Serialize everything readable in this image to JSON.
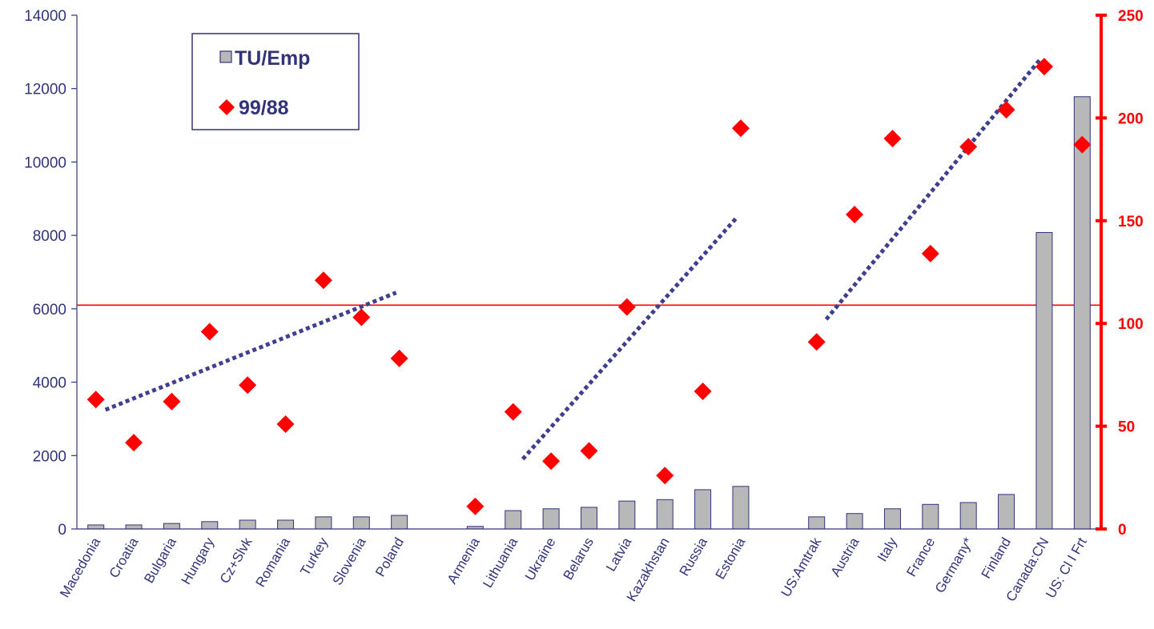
{
  "chart_data": {
    "type": "bar",
    "title": "",
    "xlabel": "",
    "ylabel": "",
    "y2label": "",
    "ylim": [
      0,
      14000
    ],
    "y2lim": [
      0,
      250
    ],
    "yticks": [
      0,
      2000,
      4000,
      6000,
      8000,
      10000,
      12000,
      14000
    ],
    "y2ticks": [
      0,
      50,
      100,
      150,
      200,
      250
    ],
    "groups": [
      {
        "categories": [
          "Macedonia",
          "Croatia",
          "Bulgaria",
          "Hungary",
          "Cz+Slvk",
          "Romania",
          "Turkey",
          "Slovenia",
          "Poland"
        ],
        "tu_emp": [
          110,
          110,
          150,
          200,
          240,
          240,
          330,
          330,
          370
        ],
        "ratio": [
          63,
          42,
          62,
          96,
          70,
          51,
          121,
          103,
          83
        ]
      },
      {
        "categories": [
          "Armenia",
          "Lithuania",
          "Ukraine",
          "Belarus",
          "Latvia",
          "Kazakhstan",
          "Russia",
          "Estonia"
        ],
        "tu_emp": [
          70,
          500,
          550,
          590,
          760,
          800,
          1070,
          1160
        ],
        "ratio": [
          11,
          57,
          33,
          38,
          108,
          26,
          67,
          195
        ]
      },
      {
        "categories": [
          "US:Amtrak",
          "Austria",
          "Italy",
          "France",
          "Germany*",
          "Finland",
          "Canada:CN",
          "US: Cl I Frt"
        ],
        "tu_emp": [
          330,
          420,
          550,
          670,
          720,
          940,
          8080,
          11780
        ],
        "ratio": [
          91,
          153,
          190,
          134,
          186,
          204,
          225,
          187
        ]
      }
    ],
    "series": [
      {
        "name": "TU/Emp",
        "type": "bar",
        "axis": "left",
        "color": "#b8b8b8"
      },
      {
        "name": "99/88",
        "type": "scatter",
        "axis": "right",
        "marker": "diamond",
        "color": "#ff0000"
      }
    ],
    "reference_line": {
      "axis": "left",
      "value": 6100,
      "color": "#ff0000"
    },
    "trend_lines": [
      {
        "group": 0,
        "axis": "right",
        "from": {
          "category": "Macedonia",
          "value": 58
        },
        "to": {
          "category": "Poland",
          "value": 115
        }
      },
      {
        "group": 1,
        "axis": "right",
        "from": {
          "category": "Lithuania",
          "value": 34
        },
        "to": {
          "category": "Estonia",
          "value": 152
        }
      },
      {
        "group": 2,
        "axis": "right",
        "from": {
          "category": "US:Amtrak",
          "value": 102
        },
        "to": {
          "category": "Canada:CN",
          "value": 229
        }
      }
    ],
    "legend": {
      "position": "top-left",
      "entries": [
        "TU/Emp",
        "99/88"
      ]
    },
    "colors": {
      "left_axis": "#33337a",
      "right_axis": "#ff0000",
      "bar": "#b8b8b8",
      "bar_edge": "#33337a",
      "trend": "#3f3f8f"
    }
  }
}
